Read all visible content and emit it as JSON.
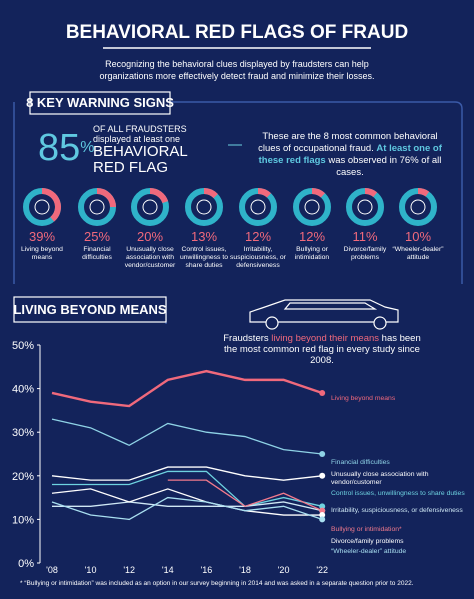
{
  "header": {
    "title": "BEHAVIORAL RED FLAGS OF FRAUD",
    "subtitle": "Recognizing the behavioral clues displayed by fraudsters can help organizations more effectively detect fraud and minimize their losses."
  },
  "warning_signs": {
    "heading": "8 KEY WARNING SIGNS",
    "stat_number": "85",
    "stat_unit": "%",
    "stat_lines": [
      "OF ALL FRAUDSTERS",
      "displayed at least one",
      "BEHAVIORAL",
      "RED FLAG"
    ],
    "intro_parts": [
      "These are the 8 most common behavioral clues of occupational fraud. ",
      "At least one of these red flags",
      " was observed in 76% of all cases."
    ],
    "items": [
      {
        "value": 39,
        "value_label": "39%",
        "label": "Living beyond means"
      },
      {
        "value": 25,
        "value_label": "25%",
        "label": "Financial difficulties"
      },
      {
        "value": 20,
        "value_label": "20%",
        "label": "Unusually close association with vendor/customer"
      },
      {
        "value": 13,
        "value_label": "13%",
        "label": "Control issues, unwillingness to share duties"
      },
      {
        "value": 12,
        "value_label": "12%",
        "label": "Irritability, suspiciousness, or defensiveness"
      },
      {
        "value": 12,
        "value_label": "12%",
        "label": "Bullying or intimidation"
      },
      {
        "value": 11,
        "value_label": "11%",
        "label": "Divorce/family problems"
      },
      {
        "value": 10,
        "value_label": "10%",
        "label": "“Wheeler-dealer” attitude"
      }
    ]
  },
  "living_beyond_means": {
    "heading": "LIVING BEYOND MEANS",
    "text_parts": [
      "Fraudsters ",
      "living beyond their means",
      " has been the most common red flag in every study since 2008."
    ]
  },
  "chart_data": {
    "type": "line",
    "categories": [
      "'08",
      "'10",
      "'12",
      "'14",
      "'16",
      "'18",
      "'20",
      "'22"
    ],
    "ylim": [
      0,
      50
    ],
    "yticks": [
      {
        "value": 0,
        "label": "0%"
      },
      {
        "value": 10,
        "label": "10%"
      },
      {
        "value": 20,
        "label": "20%"
      },
      {
        "value": 30,
        "label": "30%"
      },
      {
        "value": 40,
        "label": "40%"
      },
      {
        "value": 50,
        "label": "50%"
      }
    ],
    "legend": "right",
    "series": [
      {
        "name": "Living beyond means",
        "color": "#f0697c",
        "values": [
          39,
          37,
          36,
          42,
          44,
          42,
          42,
          39
        ]
      },
      {
        "name": "Financial difficulties",
        "color": "#8fd3e6",
        "values": [
          33,
          31,
          27,
          32,
          30,
          29,
          26,
          25
        ]
      },
      {
        "name": "Unusually close association with vendor/customer",
        "color": "#ffffff",
        "values": [
          20,
          19,
          19,
          22,
          22,
          20,
          19,
          20
        ]
      },
      {
        "name": "Control issues, unwillingness to share duties",
        "color": "#6ed3e0",
        "values": [
          18,
          18,
          18,
          21,
          21,
          13,
          15,
          13
        ]
      },
      {
        "name": "Irritability, suspiciousness, or defensiveness",
        "color": "#cfe8f5",
        "values": [
          13,
          13,
          14,
          13,
          13,
          13,
          14,
          12
        ]
      },
      {
        "name": "Bullying or intimidation*",
        "color": "#f27a8c",
        "values": [
          null,
          null,
          null,
          19,
          19,
          13,
          16,
          12
        ]
      },
      {
        "name": "Divorce/family problems",
        "color": "#ffffff",
        "values": [
          16,
          17,
          14,
          17,
          14,
          12,
          11,
          11
        ]
      },
      {
        "name": "“Wheeler-dealer” attitude",
        "color": "#a9dff0",
        "values": [
          14,
          11,
          10,
          15,
          14,
          12,
          13,
          10
        ]
      }
    ]
  },
  "footnote": "* “Bullying or intimidation” was included as an option in our survey beginning in 2014 and was asked in a separate question prior to 2022."
}
